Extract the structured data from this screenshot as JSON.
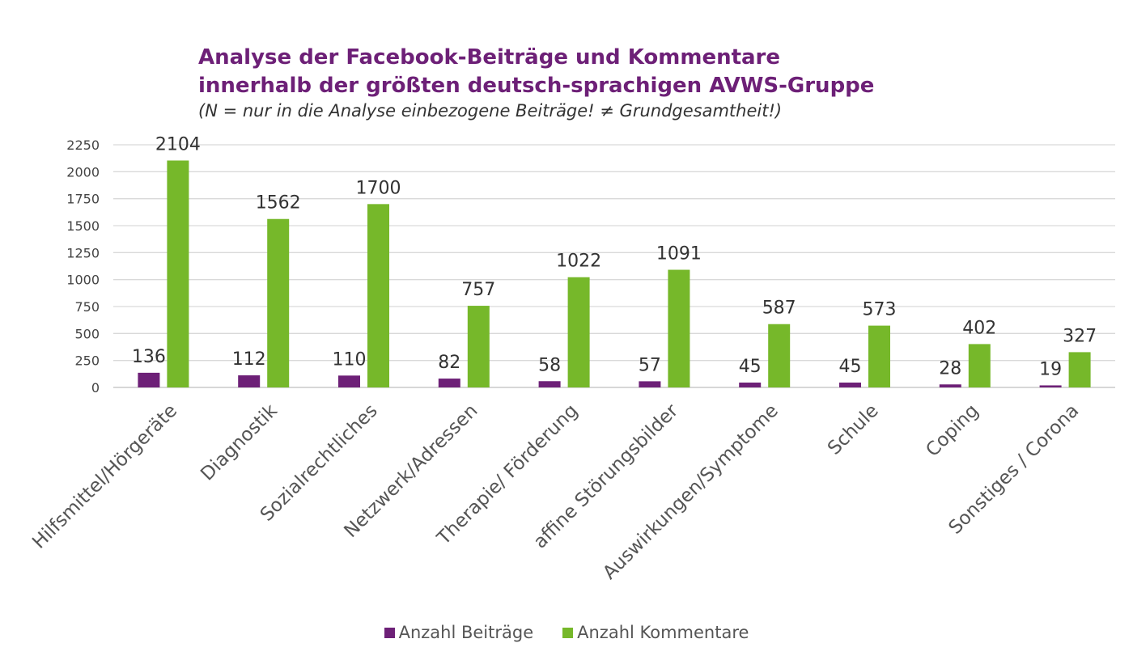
{
  "chart_data": {
    "type": "bar",
    "title_line1": "Analyse der Facebook-Beiträge und Kommentare",
    "title_line2": "innerhalb der größten deutsch-sprachigen AVWS-Gruppe",
    "subtitle": "(N = nur in die Analyse einbezogene Beiträge! ≠ Grundgesamtheit!)",
    "categories": [
      "Hilfsmittel/Hörgeräte",
      "Diagnostik",
      "Sozialrechtliches",
      "Netzwerk/Adressen",
      "Therapie/ Förderung",
      "affine Störungsbilder",
      "Auswirkungen/Symptome",
      "Schule",
      "Coping",
      "Sonstiges / Corona"
    ],
    "series": [
      {
        "name": "Anzahl Beiträge",
        "color": "#6d2077",
        "values": [
          136,
          112,
          110,
          82,
          58,
          57,
          45,
          45,
          28,
          19
        ]
      },
      {
        "name": "Anzahl Kommentare",
        "color": "#76b82a",
        "values": [
          2104,
          1562,
          1700,
          757,
          1022,
          1091,
          587,
          573,
          402,
          327
        ]
      }
    ],
    "ylim": [
      0,
      2250
    ],
    "yticks": [
      0,
      250,
      500,
      750,
      1000,
      1250,
      1500,
      1750,
      2000,
      2250
    ],
    "grid": true,
    "legend_position": "bottom"
  }
}
